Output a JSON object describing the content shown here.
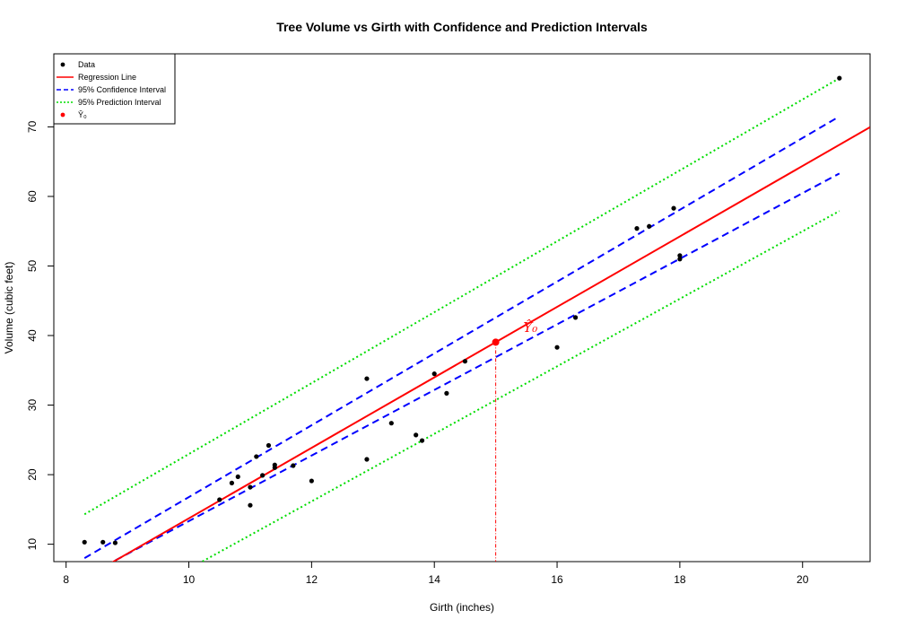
{
  "chart_data": {
    "type": "scatter",
    "title": "Tree Volume vs Girth with Confidence and Prediction Intervals",
    "xlabel": "Girth (inches)",
    "ylabel": "Volume (cubic feet)",
    "xlim": [
      7.8,
      21.1
    ],
    "ylim": [
      7.5,
      80.5
    ],
    "xticks": [
      8,
      10,
      12,
      14,
      16,
      18,
      20
    ],
    "yticks": [
      10,
      20,
      30,
      40,
      50,
      60,
      70
    ],
    "grid": false,
    "legend": {
      "position": "top-left",
      "entries": [
        {
          "label": "Data",
          "kind": "point",
          "color": "#000000"
        },
        {
          "label": "Regression Line",
          "kind": "solid-line",
          "color": "#ff0000"
        },
        {
          "label": "95% Confidence Interval",
          "kind": "dashed-line",
          "color": "#0000ff"
        },
        {
          "label": "95% Prediction Interval",
          "kind": "dotted-line",
          "color": "#00dd00"
        },
        {
          "label": "Ŷ₀",
          "kind": "point",
          "color": "#ff0000"
        }
      ]
    },
    "points": [
      [
        8.3,
        10.3
      ],
      [
        8.6,
        10.3
      ],
      [
        8.8,
        10.2
      ],
      [
        10.5,
        16.4
      ],
      [
        10.7,
        18.8
      ],
      [
        10.8,
        19.7
      ],
      [
        11.0,
        15.6
      ],
      [
        11.0,
        18.2
      ],
      [
        11.1,
        22.6
      ],
      [
        11.2,
        19.9
      ],
      [
        11.3,
        24.2
      ],
      [
        11.4,
        21.0
      ],
      [
        11.4,
        21.4
      ],
      [
        11.7,
        21.3
      ],
      [
        12.0,
        19.1
      ],
      [
        12.9,
        22.2
      ],
      [
        12.9,
        33.8
      ],
      [
        13.3,
        27.4
      ],
      [
        13.7,
        25.7
      ],
      [
        13.8,
        24.9
      ],
      [
        14.0,
        34.5
      ],
      [
        14.2,
        31.7
      ],
      [
        14.5,
        36.3
      ],
      [
        16.0,
        38.3
      ],
      [
        16.3,
        42.6
      ],
      [
        17.3,
        55.4
      ],
      [
        17.5,
        55.7
      ],
      [
        17.9,
        58.3
      ],
      [
        18.0,
        51.5
      ],
      [
        18.0,
        51.0
      ],
      [
        20.6,
        77.0
      ]
    ],
    "regression": {
      "intercept": -36.94,
      "slope": 5.066,
      "x_range": [
        8.3,
        21.1
      ]
    },
    "confidence_interval": {
      "lower": {
        "x": [
          8.3,
          20.6
        ],
        "y": [
          5.3,
          63.3
        ]
      },
      "upper": {
        "x": [
          8.3,
          20.6
        ],
        "y": [
          8.0,
          71.5
        ]
      }
    },
    "prediction_interval": {
      "lower": {
        "x": [
          8.3,
          20.6
        ],
        "y": [
          -1.8,
          57.9
        ]
      },
      "upper": {
        "x": [
          8.3,
          20.6
        ],
        "y": [
          14.3,
          77.0
        ]
      }
    },
    "prediction_point": {
      "x": 15,
      "y": 39.05
    },
    "annotation": {
      "text": "Ŷ₀",
      "x": 15.45,
      "y": 40.5
    },
    "colors": {
      "data": "#000000",
      "regression": "#ff0000",
      "confidence": "#0000ff",
      "prediction": "#00dd00"
    }
  }
}
